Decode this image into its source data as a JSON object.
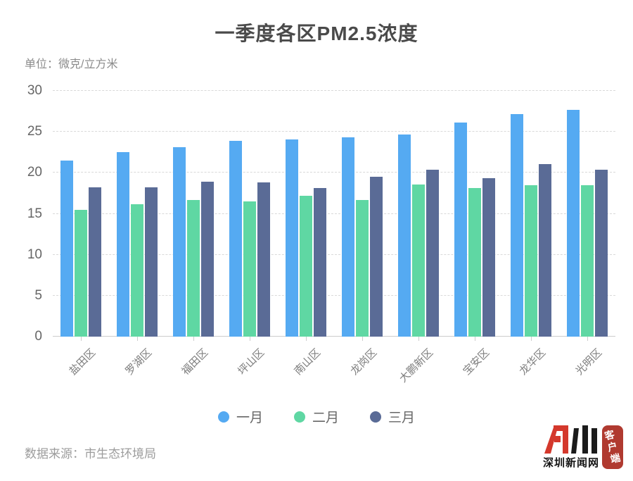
{
  "page": {
    "title": "一季度各区PM2.5浓度",
    "unit_label": "单位：微克/立方米",
    "source_label": "数据来源：市生态环境局"
  },
  "chart_data": {
    "type": "bar",
    "title": "一季度各区PM2.5浓度",
    "unit": "微克/立方米",
    "categories": [
      "盐田区",
      "罗湖区",
      "福田区",
      "坪山区",
      "南山区",
      "龙岗区",
      "大鹏新区",
      "宝安区",
      "龙华区",
      "光明区"
    ],
    "series": [
      {
        "name": "一月",
        "color": "#55aaf2",
        "values": [
          21.5,
          22.5,
          23.1,
          23.9,
          24.1,
          24.3,
          24.7,
          26.1,
          27.2,
          27.7
        ]
      },
      {
        "name": "二月",
        "color": "#5fd7a3",
        "values": [
          15.5,
          16.2,
          16.7,
          16.5,
          17.2,
          16.7,
          18.6,
          18.1,
          18.5,
          18.5
        ]
      },
      {
        "name": "三月",
        "color": "#5a6b96",
        "values": [
          18.2,
          18.2,
          18.9,
          18.8,
          18.1,
          19.5,
          20.4,
          19.3,
          21.1,
          20.4
        ]
      }
    ],
    "ylim": [
      0,
      30
    ],
    "ytick_step": 5,
    "yticks": [
      0,
      5,
      10,
      15,
      20,
      25,
      30
    ],
    "grid": true,
    "legend_position": "bottom"
  },
  "logo": {
    "site_name": "深圳新闻网",
    "badge_label": "客户端"
  },
  "colors": {
    "january": "#55aaf2",
    "february": "#5fd7a3",
    "march": "#5a6b96",
    "title_text": "#4a4a4a",
    "grid_line": "#d9d9d9",
    "axis_line": "#cccccc",
    "logo_red": "#d4382c",
    "seal_red": "#b03a30"
  }
}
